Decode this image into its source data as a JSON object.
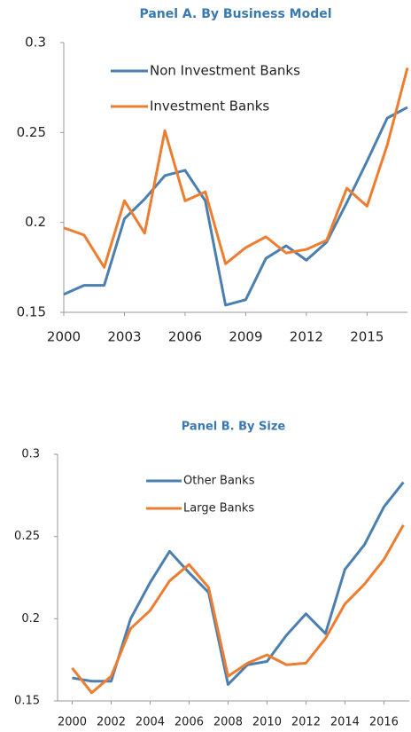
{
  "chart_data": [
    {
      "type": "line",
      "title": "Panel A. By Business Model",
      "x": [
        2000,
        2001,
        2002,
        2003,
        2004,
        2005,
        2006,
        2007,
        2008,
        2009,
        2010,
        2011,
        2012,
        2013,
        2014,
        2015,
        2016,
        2017
      ],
      "series": [
        {
          "name": "Non Investment Banks",
          "color": "#4a7fb0",
          "values": [
            0.16,
            0.165,
            0.165,
            0.202,
            0.213,
            0.226,
            0.229,
            0.212,
            0.154,
            0.157,
            0.18,
            0.187,
            0.179,
            0.189,
            0.211,
            0.234,
            0.258,
            0.264
          ]
        },
        {
          "name": "Investment Banks",
          "color": "#ed7d31",
          "values": [
            0.197,
            0.193,
            0.175,
            0.212,
            0.194,
            0.251,
            0.212,
            0.217,
            0.177,
            0.186,
            0.192,
            0.183,
            0.185,
            0.19,
            0.219,
            0.209,
            0.243,
            0.286
          ]
        }
      ],
      "xlim": [
        2000,
        2017
      ],
      "xticks": [
        2000,
        2003,
        2006,
        2009,
        2012,
        2015
      ],
      "ylim": [
        0.15,
        0.3
      ],
      "yticks": [
        0.15,
        0.2,
        0.25,
        0.3
      ]
    },
    {
      "type": "line",
      "title": "Panel B. By Size",
      "x": [
        2000,
        2001,
        2002,
        2003,
        2004,
        2005,
        2006,
        2007,
        2008,
        2009,
        2010,
        2011,
        2012,
        2013,
        2014,
        2015,
        2016,
        2017
      ],
      "series": [
        {
          "name": "Other Banks",
          "color": "#4a7fb0",
          "values": [
            0.164,
            0.162,
            0.162,
            0.2,
            0.222,
            0.241,
            0.228,
            0.216,
            0.16,
            0.172,
            0.174,
            0.19,
            0.203,
            0.191,
            0.23,
            0.245,
            0.268,
            0.283
          ]
        },
        {
          "name": "Large Banks",
          "color": "#ed7d31",
          "values": [
            0.17,
            0.155,
            0.165,
            0.194,
            0.205,
            0.223,
            0.233,
            0.219,
            0.165,
            0.173,
            0.178,
            0.172,
            0.173,
            0.188,
            0.209,
            0.221,
            0.236,
            0.257
          ]
        }
      ],
      "xlim": [
        1999.25,
        2017.3
      ],
      "xticks": [
        2000,
        2002,
        2004,
        2006,
        2008,
        2010,
        2012,
        2014,
        2016
      ],
      "ylim": [
        0.15,
        0.3
      ],
      "yticks": [
        0.15,
        0.2,
        0.25,
        0.3
      ]
    }
  ]
}
